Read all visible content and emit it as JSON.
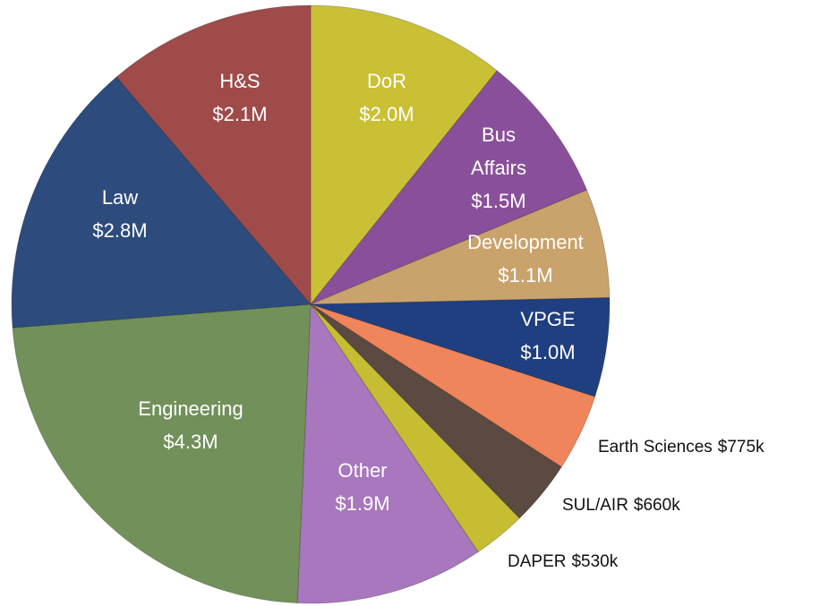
{
  "chart_data": {
    "type": "pie",
    "categories": [
      "DoR",
      "Bus Affairs",
      "Development",
      "VPGE",
      "Earth Sciences",
      "SUL/AIR",
      "DAPER",
      "Other",
      "Engineering",
      "Law",
      "H&S"
    ],
    "values": [
      2000000,
      1500000,
      1100000,
      1000000,
      775000,
      660000,
      530000,
      1900000,
      4300000,
      2800000,
      2100000
    ],
    "value_labels": [
      "$2.0M",
      "$1.5M",
      "$1.1M",
      "$1.0M",
      "$775k",
      "$660k",
      "$530k",
      "$1.9M",
      "$4.3M",
      "$2.8M",
      "$2.1M"
    ],
    "colors": [
      "#c9c036",
      "#8a4f9a",
      "#c9a26c",
      "#1f3f80",
      "#f0845a",
      "#5a4a42",
      "#c6bd32",
      "#a877bd",
      "#72905a",
      "#2d4b7c",
      "#9e4b4a"
    ]
  }
}
